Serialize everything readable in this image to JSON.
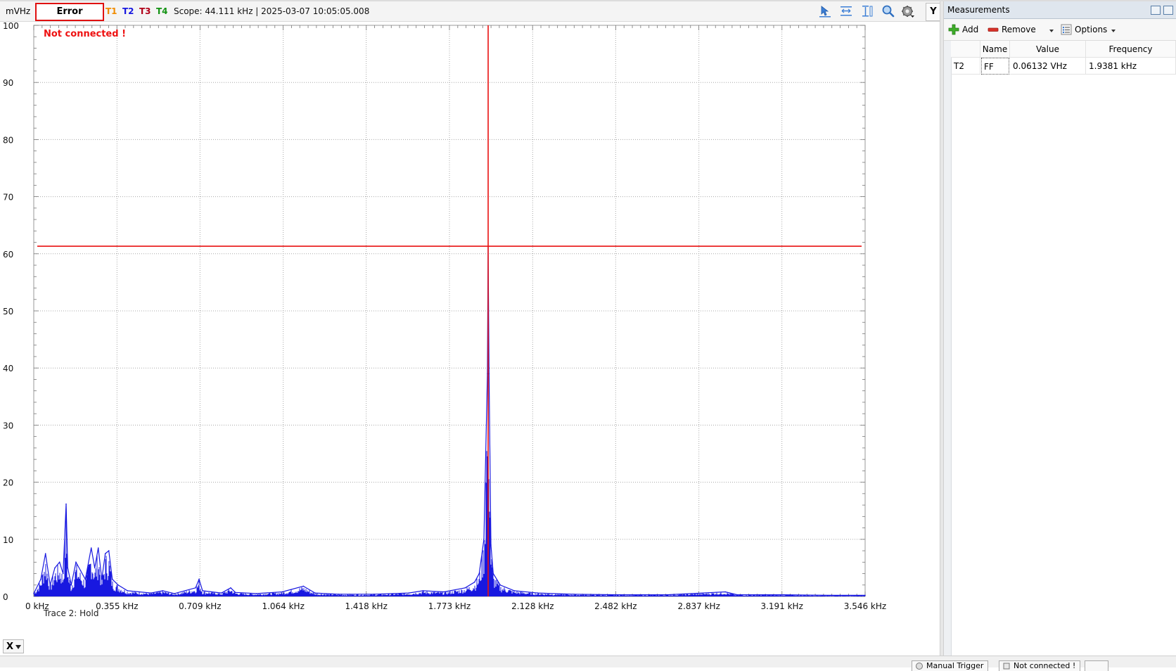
{
  "scope": {
    "unit": "mVHz",
    "status": "Error",
    "traces": [
      {
        "label": "T1",
        "color": "#f08c00"
      },
      {
        "label": "T2",
        "color": "#1818e0"
      },
      {
        "label": "T3",
        "color": "#b00018"
      },
      {
        "label": "T4",
        "color": "#139213"
      }
    ],
    "info": "Scope: 44.111 kHz | 2025-03-07 10:05:05.008",
    "toolbar_icons": [
      "cursor-arrow-icon",
      "horizontal-measure-icon",
      "vertical-measure-icon",
      "zoom-icon",
      "settings-gear-icon"
    ],
    "y_button": "Y",
    "x_button": "X",
    "not_connected": "Not connected !",
    "trace_status": "Trace 2: Hold"
  },
  "chart_data": {
    "type": "line",
    "xlabel": "",
    "ylabel": "mVHz",
    "x_unit": "kHz",
    "xlim": [
      0,
      3.546
    ],
    "ylim": [
      0,
      100
    ],
    "y_ticks": [
      0,
      10,
      20,
      30,
      40,
      50,
      60,
      70,
      80,
      90,
      100
    ],
    "x_ticks": [
      {
        "value": 0,
        "label": "0 kHz"
      },
      {
        "value": 0.355,
        "label": "0.355 kHz"
      },
      {
        "value": 0.709,
        "label": "0.709 kHz"
      },
      {
        "value": 1.064,
        "label": "1.064 kHz"
      },
      {
        "value": 1.418,
        "label": "1.418 kHz"
      },
      {
        "value": 1.773,
        "label": "1.773 kHz"
      },
      {
        "value": 2.128,
        "label": "2.128 kHz"
      },
      {
        "value": 2.482,
        "label": "2.482 kHz"
      },
      {
        "value": 2.837,
        "label": "2.837 kHz"
      },
      {
        "value": 3.191,
        "label": "3.191 kHz"
      },
      {
        "value": 3.546,
        "label": "3.546 kHz"
      }
    ],
    "grid": true,
    "series": [
      {
        "color": "#1818e0",
        "points": [
          [
            0.0,
            0.5
          ],
          [
            0.03,
            3
          ],
          [
            0.05,
            7.5
          ],
          [
            0.07,
            2
          ],
          [
            0.09,
            5
          ],
          [
            0.11,
            6
          ],
          [
            0.125,
            4
          ],
          [
            0.138,
            16.2
          ],
          [
            0.145,
            5
          ],
          [
            0.16,
            2
          ],
          [
            0.18,
            6
          ],
          [
            0.2,
            4.5
          ],
          [
            0.22,
            3
          ],
          [
            0.245,
            8.5
          ],
          [
            0.26,
            5
          ],
          [
            0.275,
            8.5
          ],
          [
            0.29,
            3
          ],
          [
            0.305,
            7.5
          ],
          [
            0.32,
            8
          ],
          [
            0.335,
            3
          ],
          [
            0.36,
            2
          ],
          [
            0.4,
            1
          ],
          [
            0.45,
            0.8
          ],
          [
            0.5,
            0.6
          ],
          [
            0.55,
            1
          ],
          [
            0.6,
            0.5
          ],
          [
            0.69,
            1.5
          ],
          [
            0.705,
            3
          ],
          [
            0.72,
            1
          ],
          [
            0.8,
            0.6
          ],
          [
            0.84,
            1.5
          ],
          [
            0.86,
            0.7
          ],
          [
            0.95,
            0.5
          ],
          [
            1.06,
            0.8
          ],
          [
            1.15,
            1.8
          ],
          [
            1.2,
            0.6
          ],
          [
            1.3,
            0.4
          ],
          [
            1.45,
            0.4
          ],
          [
            1.6,
            0.6
          ],
          [
            1.66,
            1
          ],
          [
            1.75,
            0.8
          ],
          [
            1.84,
            1.5
          ],
          [
            1.88,
            2.5
          ],
          [
            1.9,
            4
          ],
          [
            1.92,
            10
          ],
          [
            1.935,
            39
          ],
          [
            1.9381,
            61.3
          ],
          [
            1.942,
            39
          ],
          [
            1.95,
            9
          ],
          [
            1.96,
            4
          ],
          [
            1.99,
            2
          ],
          [
            2.05,
            1
          ],
          [
            2.15,
            0.6
          ],
          [
            2.3,
            0.4
          ],
          [
            2.5,
            0.3
          ],
          [
            2.7,
            0.3
          ],
          [
            2.95,
            0.8
          ],
          [
            3.0,
            0.3
          ],
          [
            3.2,
            0.3
          ],
          [
            3.4,
            0.2
          ],
          [
            3.546,
            0.2
          ]
        ]
      }
    ],
    "cursor": {
      "x": 1.9381,
      "y": 61.32,
      "color": "#e81010"
    }
  },
  "measurements": {
    "title": "Measurements",
    "toolbar": {
      "add": "Add",
      "remove": "Remove",
      "options": "Options"
    },
    "columns": [
      "",
      "Name",
      "Value",
      "Frequency"
    ],
    "rows": [
      {
        "trace": "T2",
        "name": "FF",
        "value": "0.06132 VHz",
        "frequency": "1.9381 kHz"
      }
    ]
  },
  "statusbar": {
    "manual_trigger": "Manual Trigger",
    "connection": "Not connected !"
  }
}
